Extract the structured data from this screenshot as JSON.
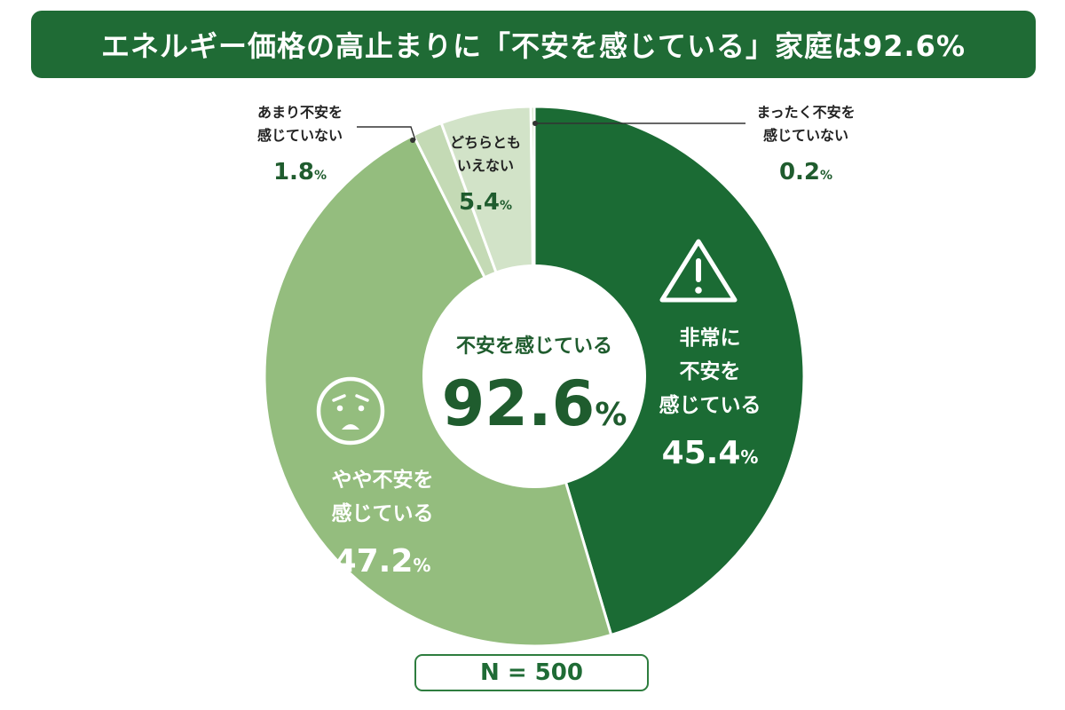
{
  "title": "エネルギー価格の高止まりに「不安を感じている」家庭は92.6%",
  "footer": {
    "sample_label": "N = 500"
  },
  "center": {
    "label": "不安を感じている",
    "value": "92.6",
    "unit": "%"
  },
  "colors": {
    "title_bg": "#1f6b35",
    "very_anxious": "#1b6b34",
    "somewhat_anxious": "#94bd7e",
    "neutral": "#d2e3c8",
    "not_very_anxious": "#c4dab5",
    "not_at_all": "#b7d0a6",
    "dark_text": "#1f5c2e",
    "light_text": "#ffffff",
    "small_text": "#222222"
  },
  "icons": [
    "warning-icon",
    "worried-face-icon"
  ],
  "chart_data": {
    "type": "pie",
    "variant": "donut",
    "total_label": "不安を感じている 92.6%",
    "n": 500,
    "slices": [
      {
        "label": [
          "非常に",
          "不安を",
          "感じている"
        ],
        "value": 45.4,
        "value_text": "45.4",
        "unit": "%"
      },
      {
        "label": [
          "やや不安を",
          "感じている"
        ],
        "value": 47.2,
        "value_text": "47.2",
        "unit": "%"
      },
      {
        "label": [
          "あまり不安を",
          "感じていない"
        ],
        "value": 1.8,
        "value_text": "1.8",
        "unit": "%"
      },
      {
        "label": [
          "どちらとも",
          "いえない"
        ],
        "value": 5.4,
        "value_text": "5.4",
        "unit": "%"
      },
      {
        "label": [
          "まったく不安を",
          "感じていない"
        ],
        "value": 0.2,
        "value_text": "0.2",
        "unit": "%"
      }
    ]
  }
}
